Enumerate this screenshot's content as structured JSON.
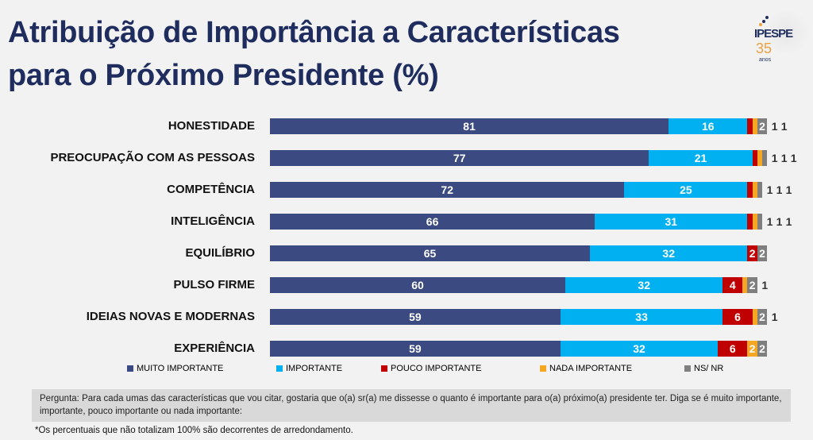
{
  "title_line1": "Atribuição de Importância a Características",
  "title_line2": "para o Próximo Presidente (%)",
  "logo": {
    "name": "IPESPE",
    "number": "35",
    "sub": "anos"
  },
  "chart_data": {
    "type": "bar",
    "orientation": "horizontal",
    "stacked": true,
    "xlim": [
      0,
      100
    ],
    "categories": [
      "HONESTIDADE",
      "PREOCUPAÇÃO COM AS PESSOAS",
      "COMPETÊNCIA",
      "INTELIGÊNCIA",
      "EQUILÍBRIO",
      "PULSO FIRME",
      "IDEIAS NOVAS E MODERNAS",
      "EXPERIÊNCIA"
    ],
    "series": [
      {
        "name": "MUITO IMPORTANTE",
        "color": "#3b4a80",
        "values": [
          81,
          77,
          72,
          66,
          65,
          60,
          59,
          59
        ]
      },
      {
        "name": "IMPORTANTE",
        "color": "#00b0f0",
        "values": [
          16,
          21,
          25,
          31,
          32,
          32,
          33,
          32
        ]
      },
      {
        "name": "POUCO IMPORTANTE",
        "color": "#c00000",
        "values": [
          1,
          1,
          1,
          1,
          2,
          4,
          6,
          6
        ]
      },
      {
        "name": "NADA IMPORTANTE",
        "color": "#f5a623",
        "values": [
          1,
          1,
          1,
          1,
          0,
          1,
          1,
          2
        ]
      },
      {
        "name": "NS/ NR",
        "color": "#7f7f7f",
        "values": [
          2,
          1,
          1,
          1,
          2,
          2,
          2,
          2
        ]
      }
    ],
    "legend_position": "bottom"
  },
  "note": "Pergunta:  Para cada umas das características que vou citar, gostaria que o(a) sr(a) me dissesse o quanto é importante para o(a) próximo(a) presidente ter. Diga se é muito importante, importante, pouco importante ou nada importante:",
  "footnote": "*Os percentuais que não totalizam 100% são decorrentes de arredondamento."
}
